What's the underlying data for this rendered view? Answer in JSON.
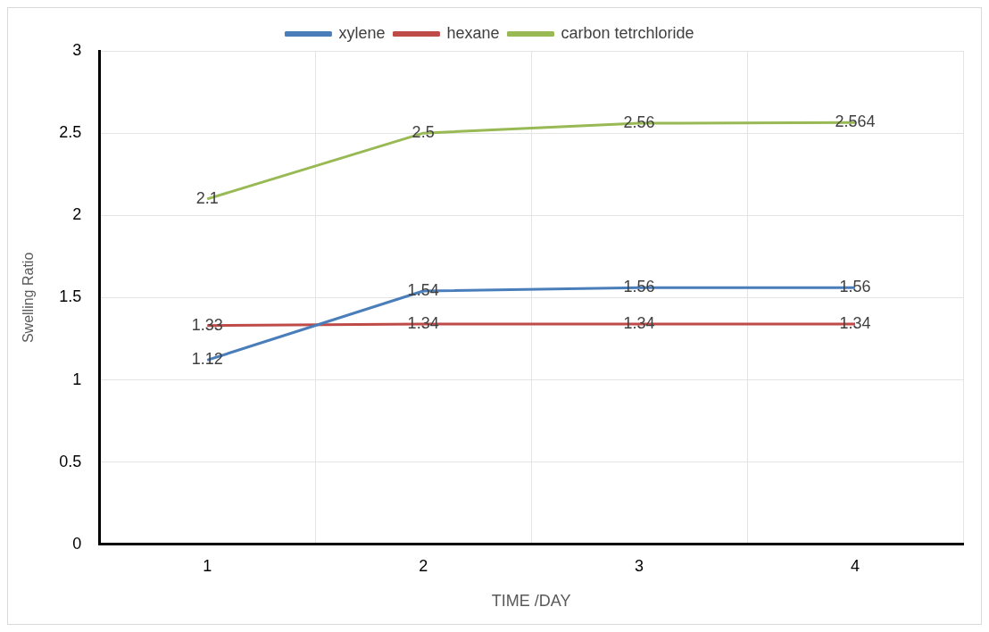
{
  "chart_data": {
    "type": "line",
    "xlabel": "TIME /DAY",
    "ylabel": "Swelling Ratio",
    "categories": [
      "1",
      "2",
      "3",
      "4"
    ],
    "series": [
      {
        "name": "xylene",
        "color": "#4a7ebb",
        "values": [
          1.12,
          1.54,
          1.56,
          1.56
        ]
      },
      {
        "name": "hexane",
        "color": "#be4b48",
        "values": [
          1.33,
          1.34,
          1.34,
          1.34
        ]
      },
      {
        "name": "carbon tetrchloride",
        "color": "#98b954",
        "values": [
          2.1,
          2.5,
          2.56,
          2.564
        ]
      }
    ],
    "ylim": [
      0,
      3
    ],
    "yticks": [
      0,
      0.5,
      1,
      1.5,
      2,
      2.5,
      3
    ],
    "grid": true,
    "legend": "top",
    "marker": "none",
    "line_style": "solid",
    "data_labels": true
  }
}
